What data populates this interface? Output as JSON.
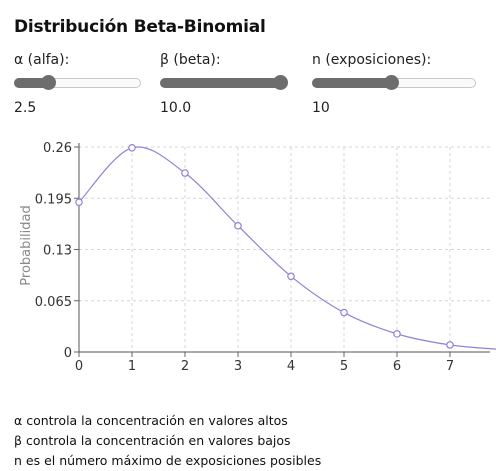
{
  "title": "Distribución Beta-Binomial",
  "controls": [
    {
      "label": "α (alfa):",
      "value_text": "2.5",
      "value": 2.5,
      "fraction": 0.24
    },
    {
      "label": "β (beta):",
      "value_text": "10.0",
      "value": 10.0,
      "fraction": 1.0
    },
    {
      "label": "n (exposiciones):",
      "value_text": "10",
      "value": 10,
      "fraction": 0.48
    }
  ],
  "chart_data": {
    "type": "line",
    "ylabel": "Probabilidad",
    "xlabel": "",
    "x": [
      0,
      1,
      2,
      3,
      4,
      5,
      6,
      7,
      8
    ],
    "y": [
      0.19,
      0.259,
      0.227,
      0.16,
      0.096,
      0.05,
      0.023,
      0.009,
      0.003
    ],
    "xlim": [
      0,
      7.8
    ],
    "ylim": [
      0,
      0.26
    ],
    "xticks": [
      "0",
      "1",
      "2",
      "3",
      "4",
      "5",
      "6",
      "7"
    ],
    "yticks": [
      "0",
      "0.065",
      "0.13",
      "0.195",
      "0.26"
    ],
    "grid": true,
    "color": "#8b84d7"
  },
  "notes": [
    "α controla la concentración en valores altos",
    "β controla la concentración en valores bajos",
    "n es el número máximo de exposiciones posibles"
  ]
}
